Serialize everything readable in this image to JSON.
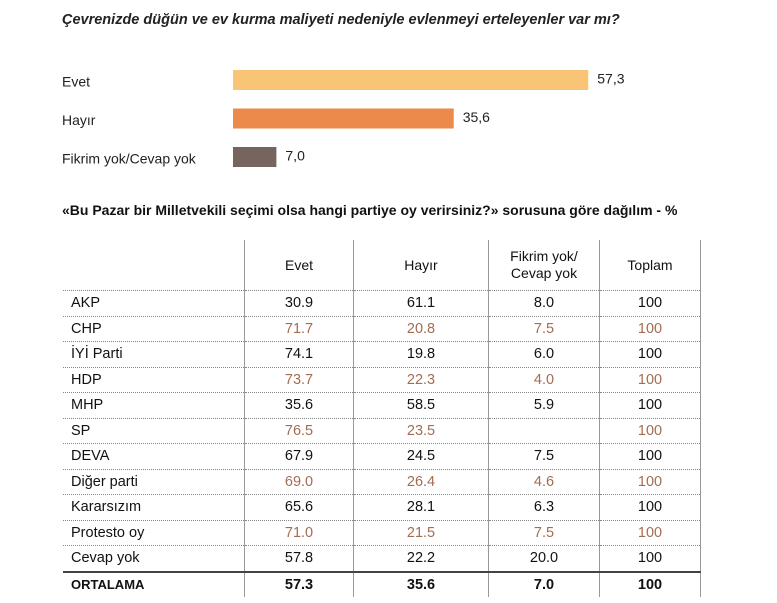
{
  "chart_data": {
    "type": "bar",
    "orientation": "horizontal",
    "title": "Çevrenizde düğün ve ev kurma maliyeti nedeniyle evlenmeyi erteleyenler var mı?",
    "categories": [
      "Evet",
      "Hayır",
      "Fikrim yok/Cevap yok"
    ],
    "values": [
      57.3,
      35.6,
      7.0
    ],
    "value_labels": [
      "57,3",
      "35,6",
      "7,0"
    ],
    "colors": [
      "#f9c476",
      "#ec8a4b",
      "#76655e"
    ]
  },
  "table": {
    "title": "«Bu Pazar bir Milletvekili seçimi olsa hangi partiye oy verirsiniz?» sorusuna göre dağılım - %",
    "columns": [
      "Evet",
      "Hayır",
      "Fikrim yok/ Cevap yok",
      "Toplam"
    ],
    "rows": [
      [
        "AKP",
        "30.9",
        "61.1",
        "8.0",
        "100"
      ],
      [
        "CHP",
        "71.7",
        "20.8",
        "7.5",
        "100"
      ],
      [
        "İYİ Parti",
        "74.1",
        "19.8",
        "6.0",
        "100"
      ],
      [
        "HDP",
        "73.7",
        "22.3",
        "4.0",
        "100"
      ],
      [
        "MHP",
        "35.6",
        "58.5",
        "5.9",
        "100"
      ],
      [
        "SP",
        "76.5",
        "23.5",
        null,
        "100"
      ],
      [
        "DEVA",
        "67.9",
        "24.5",
        "7.5",
        "100"
      ],
      [
        "Diğer parti",
        "69.0",
        "26.4",
        "4.6",
        "100"
      ],
      [
        "Kararsızım",
        "65.6",
        "28.1",
        "6.3",
        "100"
      ],
      [
        "Protesto oy",
        "71.0",
        "21.5",
        "7.5",
        "100"
      ],
      [
        "Cevap yok",
        "57.8",
        "22.2",
        "20.0",
        "100"
      ]
    ],
    "total": [
      "ORTALAMA",
      "57.3",
      "35.6",
      "7.0",
      "100"
    ]
  }
}
